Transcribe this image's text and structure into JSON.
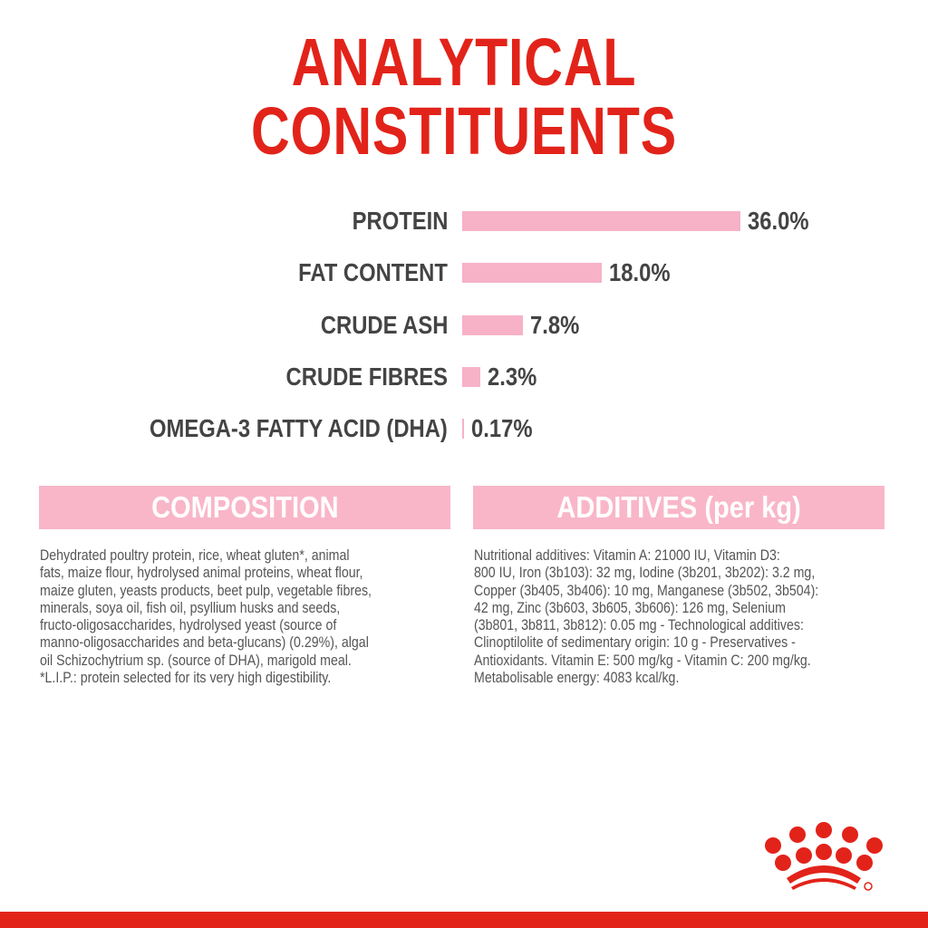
{
  "title": [
    "ANALYTICAL",
    "CONSTITUENTS"
  ],
  "chart_data": {
    "type": "bar",
    "orientation": "horizontal",
    "categories": [
      "PROTEIN",
      "FAT CONTENT",
      "CRUDE ASH",
      "CRUDE FIBRES",
      "OMEGA-3 FATTY ACID (DHA)"
    ],
    "values": [
      36.0,
      18.0,
      7.8,
      2.3,
      0.17
    ],
    "data_labels": [
      "36.0%",
      "18.0%",
      "7.8%",
      "2.3%",
      "0.17%"
    ],
    "bar_color": "#f7b2c7"
  },
  "composition": {
    "heading": "COMPOSITION",
    "lines": [
      "Dehydrated poultry protein, rice, wheat gluten*, animal",
      "fats, maize flour, hydrolysed animal proteins, wheat flour,",
      "maize gluten, yeasts products, beet pulp, vegetable fibres,",
      "minerals, soya oil, fish oil, psyllium husks and seeds,",
      "fructo-oligosaccharides, hydrolysed yeast (source of",
      "manno-oligosaccharides and beta-glucans) (0.29%), algal",
      "oil Schizochytrium sp. (source of DHA), marigold meal.",
      "*L.I.P.: protein selected for its very high digestibility."
    ]
  },
  "additives": {
    "heading": "ADDITIVES (per kg)",
    "lines": [
      "Nutritional additives: Vitamin A: 21000 IU, Vitamin D3:",
      "800 IU, Iron (3b103): 32 mg, Iodine (3b201, 3b202): 3.2 mg,",
      "Copper (3b405, 3b406): 10 mg, Manganese (3b502, 3b504):",
      "42 mg, Zinc (3b603, 3b605, 3b606): 126 mg, Selenium",
      "(3b801, 3b811, 3b812): 0.05 mg - Technological additives:",
      "Clinoptilolite of sedimentary origin: 10 g - Preservatives -",
      "Antioxidants. Vitamin E: 500 mg/kg - Vitamin C: 200 mg/kg.",
      "Metabolisable energy: 4083 kcal/kg."
    ]
  },
  "colors": {
    "brand_red": "#e2231a",
    "pink": "#f9b6c9",
    "text": "#555555"
  },
  "logo": "royal-canin-crown-logo"
}
